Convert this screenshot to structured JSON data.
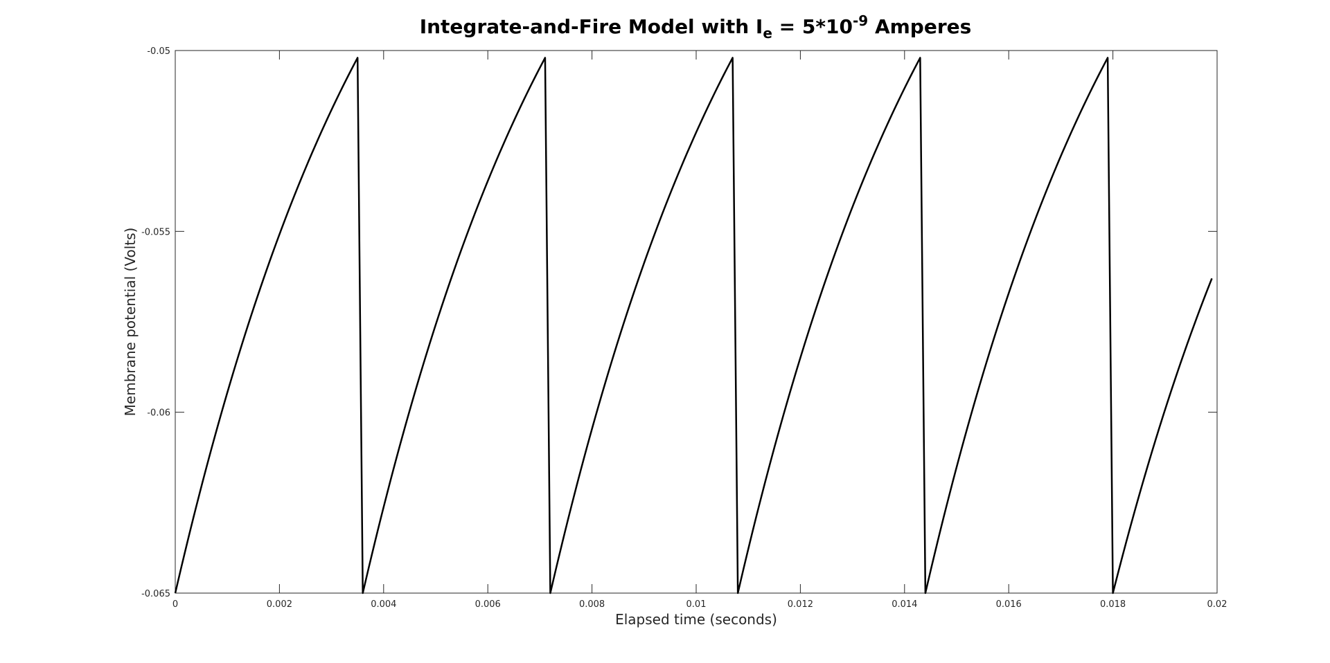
{
  "chart_data": {
    "type": "line",
    "title": {
      "prefix": "Integrate-and-Fire Model with I",
      "subscript": "e",
      "middle": " = 5*10",
      "superscript": "-9",
      "suffix": " Amperes"
    },
    "xlabel": "Elapsed time (seconds)",
    "ylabel": "Membrane potential (Volts)",
    "xlim": [
      0,
      0.02
    ],
    "ylim": [
      -0.065,
      -0.05
    ],
    "xticks": [
      0,
      0.002,
      0.004,
      0.006,
      0.008,
      0.01,
      0.012,
      0.014,
      0.016,
      0.018,
      0.02
    ],
    "xtick_labels": [
      "0",
      "0.002",
      "0.004",
      "0.006",
      "0.008",
      "0.01",
      "0.012",
      "0.014",
      "0.016",
      "0.018",
      "0.02"
    ],
    "yticks": [
      -0.065,
      -0.06,
      -0.055,
      -0.05
    ],
    "ytick_labels": [
      "-0.065",
      "-0.06",
      "-0.055",
      "-0.05"
    ],
    "grid": false,
    "series": [
      {
        "color": "#000000",
        "x": [
          0,
          0.0035,
          0.0036,
          0.0071,
          0.0072,
          0.0107,
          0.0108,
          0.0143,
          0.0144,
          0.0179,
          0.018,
          0.0199
        ],
        "y": [
          -0.065,
          -0.0502,
          -0.065,
          -0.0502,
          -0.065,
          -0.0502,
          -0.065,
          -0.0502,
          -0.065,
          -0.0502,
          -0.065,
          -0.0563
        ]
      }
    ]
  }
}
